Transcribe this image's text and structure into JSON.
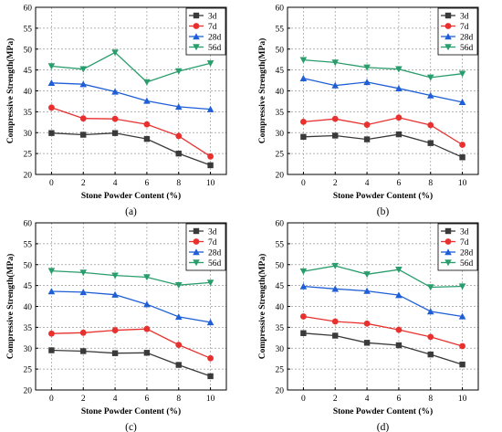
{
  "colors": {
    "3d": "#3a3a3a",
    "7d": "#e8312f",
    "28d": "#1f5fd6",
    "56d": "#2a9d6c"
  },
  "chart_data": [
    {
      "type": "line",
      "panel_label": "(a)",
      "xlabel": "Stone Powder Content (%)",
      "ylabel": "Compressive Strength(MPa)",
      "xlim": [
        -1,
        11
      ],
      "ylim": [
        20,
        60
      ],
      "x": [
        0,
        2,
        4,
        6,
        8,
        10
      ],
      "xticks": [
        "0",
        "2",
        "4",
        "6",
        "8",
        "10"
      ],
      "yticks": [
        "20",
        "25",
        "30",
        "35",
        "40",
        "45",
        "50",
        "55",
        "60"
      ],
      "grid": true,
      "legend_position": "top-right",
      "series": [
        {
          "name": "3d",
          "marker": "square",
          "values": [
            29.9,
            29.5,
            29.9,
            28.5,
            25.0,
            22.2
          ]
        },
        {
          "name": "7d",
          "marker": "circle",
          "values": [
            36.0,
            33.4,
            33.3,
            32.0,
            29.2,
            24.3
          ]
        },
        {
          "name": "28d",
          "marker": "triangle-up",
          "values": [
            41.9,
            41.6,
            39.8,
            37.6,
            36.2,
            35.6
          ]
        },
        {
          "name": "56d",
          "marker": "triangle-down",
          "values": [
            45.9,
            45.2,
            49.2,
            42.1,
            44.7,
            46.6
          ]
        }
      ]
    },
    {
      "type": "line",
      "panel_label": "(b)",
      "xlabel": "Stone Powder Content (%)",
      "ylabel": "Compressive Strength(MPa)",
      "xlim": [
        -1,
        11
      ],
      "ylim": [
        20,
        60
      ],
      "x": [
        0,
        2,
        4,
        6,
        8,
        10
      ],
      "xticks": [
        "0",
        "2",
        "4",
        "6",
        "8",
        "10"
      ],
      "yticks": [
        "20",
        "25",
        "30",
        "35",
        "40",
        "45",
        "50",
        "55",
        "60"
      ],
      "grid": true,
      "legend_position": "top-right",
      "series": [
        {
          "name": "3d",
          "marker": "square",
          "values": [
            29.0,
            29.3,
            28.4,
            29.6,
            27.5,
            24.1
          ]
        },
        {
          "name": "7d",
          "marker": "circle",
          "values": [
            32.6,
            33.3,
            31.9,
            33.6,
            31.8,
            27.1
          ]
        },
        {
          "name": "28d",
          "marker": "triangle-up",
          "values": [
            43.0,
            41.3,
            42.1,
            40.6,
            38.9,
            37.3
          ]
        },
        {
          "name": "56d",
          "marker": "triangle-down",
          "values": [
            47.4,
            46.8,
            45.6,
            45.2,
            43.2,
            44.1
          ]
        }
      ]
    },
    {
      "type": "line",
      "panel_label": "(c)",
      "xlabel": "Stone Powder Content (%)",
      "ylabel": "Compressive Strength(MPa)",
      "xlim": [
        -1,
        11
      ],
      "ylim": [
        20,
        60
      ],
      "x": [
        0,
        2,
        4,
        6,
        8,
        10
      ],
      "xticks": [
        "0",
        "2",
        "4",
        "6",
        "8",
        "10"
      ],
      "yticks": [
        "20",
        "25",
        "30",
        "35",
        "40",
        "45",
        "50",
        "55",
        "60"
      ],
      "grid": true,
      "legend_position": "top-right",
      "series": [
        {
          "name": "3d",
          "marker": "square",
          "values": [
            29.5,
            29.3,
            28.8,
            28.9,
            26.0,
            23.3
          ]
        },
        {
          "name": "7d",
          "marker": "circle",
          "values": [
            33.5,
            33.7,
            34.3,
            34.6,
            30.8,
            27.6
          ]
        },
        {
          "name": "28d",
          "marker": "triangle-up",
          "values": [
            43.6,
            43.4,
            42.8,
            40.5,
            37.5,
            36.2
          ]
        },
        {
          "name": "56d",
          "marker": "triangle-down",
          "values": [
            48.5,
            48.1,
            47.4,
            47.0,
            45.1,
            45.7
          ]
        }
      ]
    },
    {
      "type": "line",
      "panel_label": "(d)",
      "xlabel": "Stone Powder Content (%)",
      "ylabel": "Compressive Strength(MPa)",
      "xlim": [
        -1,
        11
      ],
      "ylim": [
        20,
        60
      ],
      "x": [
        0,
        2,
        4,
        6,
        8,
        10
      ],
      "xticks": [
        "0",
        "2",
        "4",
        "6",
        "8",
        "10"
      ],
      "yticks": [
        "20",
        "25",
        "30",
        "35",
        "40",
        "45",
        "50",
        "55",
        "60"
      ],
      "grid": true,
      "legend_position": "top-right",
      "series": [
        {
          "name": "3d",
          "marker": "square",
          "values": [
            33.6,
            33.0,
            31.3,
            30.7,
            28.5,
            26.1
          ]
        },
        {
          "name": "7d",
          "marker": "circle",
          "values": [
            37.6,
            36.4,
            35.9,
            34.4,
            32.7,
            30.5
          ]
        },
        {
          "name": "28d",
          "marker": "triangle-up",
          "values": [
            44.8,
            44.2,
            43.7,
            42.7,
            38.8,
            37.6
          ]
        },
        {
          "name": "56d",
          "marker": "triangle-down",
          "values": [
            48.4,
            49.7,
            47.7,
            48.8,
            44.6,
            44.8
          ]
        }
      ]
    }
  ]
}
